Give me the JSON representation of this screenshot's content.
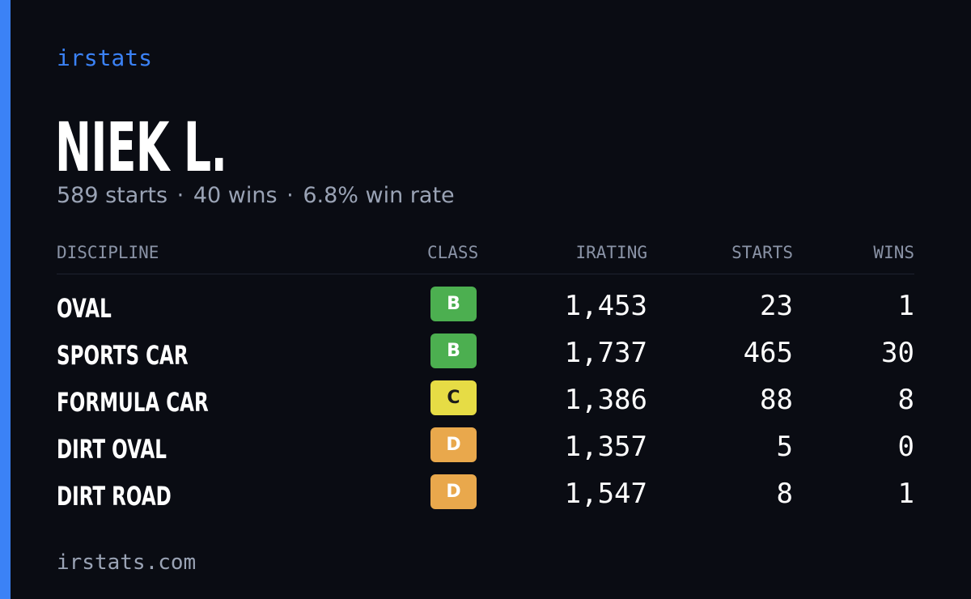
{
  "brand": "irstats",
  "player_name": "NIEK L.",
  "summary": {
    "starts": "589 starts",
    "wins": "40 wins",
    "win_rate": "6.8% win rate",
    "separator": "·"
  },
  "table": {
    "headers": {
      "discipline": "DISCIPLINE",
      "class": "CLASS",
      "irating": "IRATING",
      "starts": "STARTS",
      "wins": "WINS"
    },
    "rows": [
      {
        "discipline": "OVAL",
        "class": "B",
        "irating": "1,453",
        "starts": "23",
        "wins": "1"
      },
      {
        "discipline": "SPORTS CAR",
        "class": "B",
        "irating": "1,737",
        "starts": "465",
        "wins": "30"
      },
      {
        "discipline": "FORMULA CAR",
        "class": "C",
        "irating": "1,386",
        "starts": "88",
        "wins": "8"
      },
      {
        "discipline": "DIRT OVAL",
        "class": "D",
        "irating": "1,357",
        "starts": "5",
        "wins": "0"
      },
      {
        "discipline": "DIRT ROAD",
        "class": "D",
        "irating": "1,547",
        "starts": "8",
        "wins": "1"
      }
    ]
  },
  "class_colors": {
    "B": "#4caf50",
    "C": "#e6dc45",
    "D": "#e9a84c"
  },
  "accent_color": "#3b82f6",
  "footer": "irstats.com"
}
